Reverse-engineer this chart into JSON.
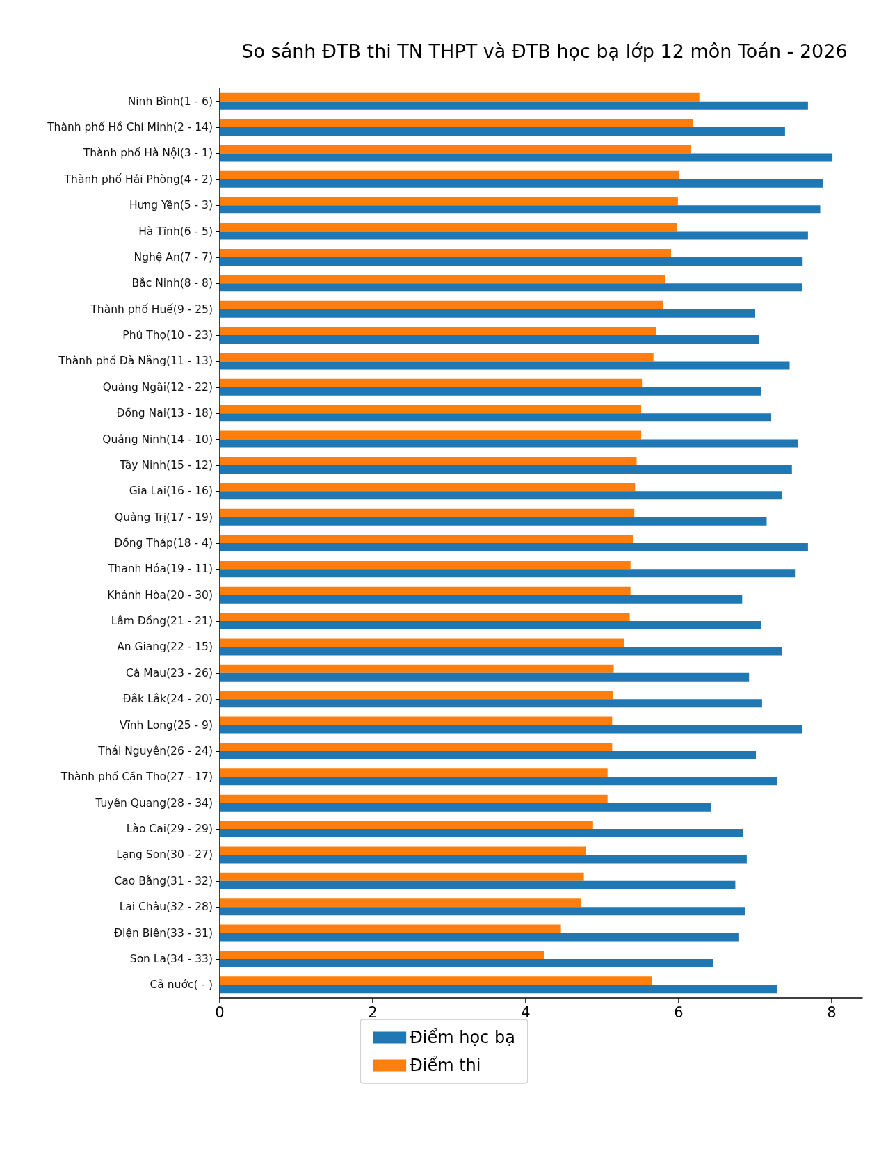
{
  "chart_data": {
    "type": "bar",
    "orientation": "horizontal",
    "title": "So sánh ĐTB thi TN THPT và ĐTB học bạ lớp 12 môn Toán - 2026",
    "categories": [
      "Ninh Bình(1 - 6)",
      "Thành phố Hồ Chí Minh(2 - 14)",
      "Thành phố Hà Nội(3 - 1)",
      "Thành phố Hải Phòng(4 - 2)",
      "Hưng Yên(5 - 3)",
      "Hà Tĩnh(6 - 5)",
      "Nghệ An(7 - 7)",
      "Bắc Ninh(8 - 8)",
      "Thành phố Huế(9 - 25)",
      "Phú Thọ(10 - 23)",
      "Thành phố Đà Nẵng(11 - 13)",
      "Quảng Ngãi(12 - 22)",
      "Đồng Nai(13 - 18)",
      "Quảng Ninh(14 - 10)",
      "Tây Ninh(15 - 12)",
      "Gia Lai(16 - 16)",
      "Quảng Trị(17 - 19)",
      "Đồng Tháp(18 - 4)",
      "Thanh Hóa(19 - 11)",
      "Khánh Hòa(20 - 30)",
      "Lâm Đồng(21 - 21)",
      "An Giang(22 - 15)",
      "Cà Mau(23 - 26)",
      "Đắk Lắk(24 - 20)",
      "Vĩnh Long(25 - 9)",
      "Thái Nguyên(26 - 24)",
      "Thành phố Cần Thơ(27 - 17)",
      "Tuyên Quang(28 - 34)",
      "Lào Cai(29 - 29)",
      "Lạng Sơn(30 - 27)",
      "Cao Bằng(31 - 32)",
      "Lai Châu(32 - 28)",
      "Điện Biên(33 - 31)",
      "Sơn La(34 - 33)",
      "Cả nước( - )"
    ],
    "series": [
      {
        "name": "Điểm học bạ",
        "color": "#1f77b4",
        "values": [
          7.69,
          7.39,
          8.01,
          7.89,
          7.85,
          7.69,
          7.62,
          7.61,
          7.0,
          7.05,
          7.45,
          7.08,
          7.21,
          7.56,
          7.48,
          7.35,
          7.15,
          7.69,
          7.52,
          6.83,
          7.08,
          7.35,
          6.92,
          7.09,
          7.61,
          7.01,
          7.29,
          6.42,
          6.84,
          6.89,
          6.74,
          6.87,
          6.79,
          6.45,
          7.29
        ]
      },
      {
        "name": "Điểm thi",
        "color": "#ff7f0e",
        "values": [
          6.27,
          6.19,
          6.16,
          6.01,
          5.99,
          5.98,
          5.9,
          5.82,
          5.8,
          5.7,
          5.67,
          5.52,
          5.51,
          5.51,
          5.45,
          5.43,
          5.42,
          5.41,
          5.37,
          5.37,
          5.36,
          5.29,
          5.15,
          5.14,
          5.13,
          5.13,
          5.07,
          5.07,
          4.88,
          4.79,
          4.76,
          4.72,
          4.46,
          4.24,
          5.65
        ]
      }
    ],
    "xlim": [
      0,
      8.4
    ],
    "xticks": [
      0,
      2,
      4,
      6,
      8
    ],
    "legend": "bottom"
  }
}
